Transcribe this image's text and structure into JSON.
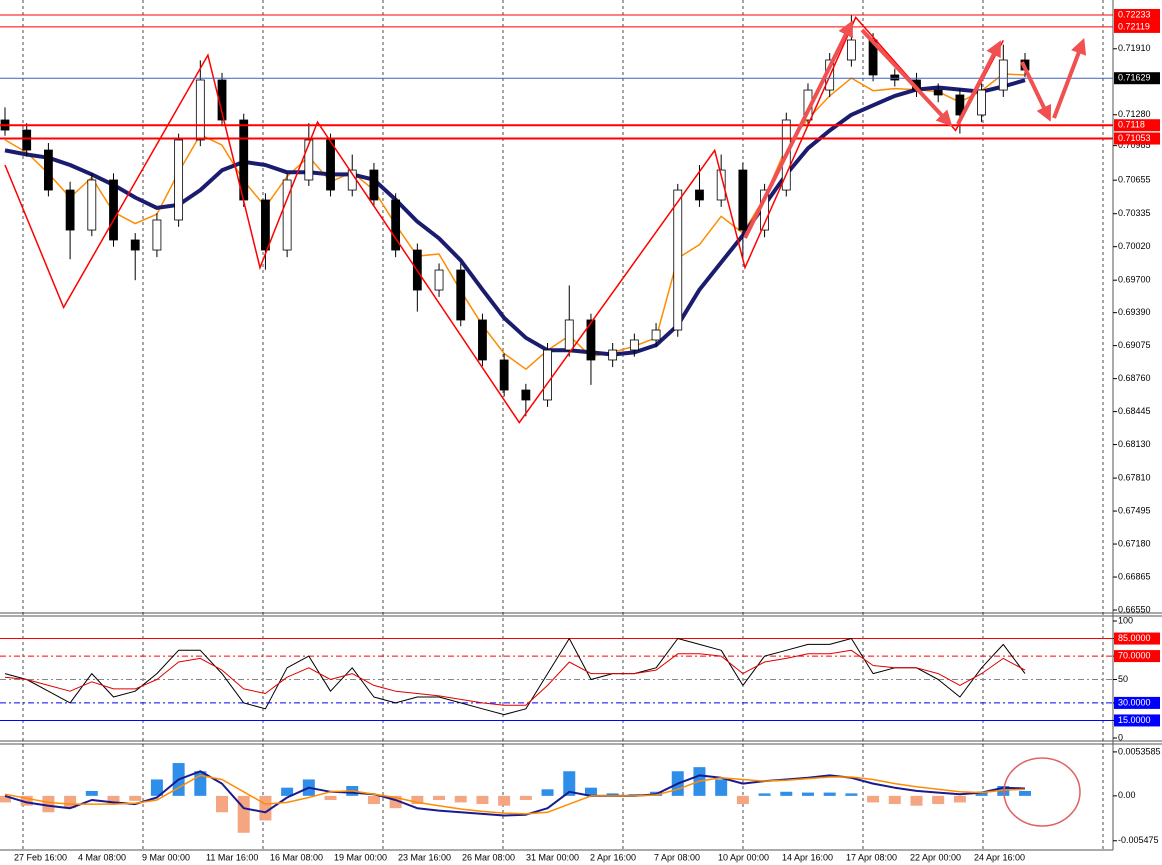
{
  "chart_data": [
    {
      "type": "candlestick",
      "ylim": [
        0.66531,
        0.72376
      ],
      "yticks": [
        {
          "value": 0.6655,
          "label": "0.66550"
        },
        0.66865,
        {
          "value": 0.6718,
          "label": "0.67180"
        },
        0.67495,
        {
          "value": 0.6781,
          "label": "0.67810"
        },
        {
          "value": 0.6813,
          "label": "0.68130"
        },
        0.68445,
        {
          "value": 0.6876,
          "label": "0.68760"
        },
        0.69075,
        {
          "value": 0.6939,
          "label": "0.69390"
        },
        {
          "value": 0.697,
          "label": "0.69700"
        },
        {
          "value": 0.7002,
          "label": "0.70020"
        },
        0.70335,
        0.70655,
        0.70985,
        {
          "value": 0.7128,
          "label": "0.71280"
        },
        {
          "value": 0.7191,
          "label": "0.71910"
        }
      ],
      "xticklabels": [
        "27 Feb 16:00",
        "4 Mar 08:00",
        "9 Mar 00:00",
        "11 Mar 16:00",
        "16 Mar 08:00",
        "19 Mar 00:00",
        "23 Mar 16:00",
        "26 Mar 08:00",
        "31 Mar 00:00",
        "2 Apr 16:00",
        "7 Apr 08:00",
        "10 Apr 00:00",
        "14 Apr 16:00",
        "17 Apr 08:00",
        "22 Apr 00:00",
        "24 Apr 16:00"
      ],
      "up_color": "#ffffff",
      "down_color": "#000000",
      "open": [
        0.7123,
        0.71134,
        0.70943,
        0.70561,
        0.70179,
        0.70657,
        0.70084,
        0.69988,
        0.70275,
        0.71039,
        0.71612,
        0.7123,
        0.70466,
        0.69988,
        0.70657,
        0.71039,
        0.70561,
        0.70752,
        0.70466,
        0.69988,
        0.69606,
        0.69797,
        0.6932,
        0.68938,
        0.68651,
        0.68556,
        0.69033,
        0.6932,
        0.68938,
        0.69033,
        0.69129,
        0.69224,
        0.70561,
        0.70466,
        0.70752,
        0.70179,
        0.70561,
        0.7123,
        0.71516,
        0.71803,
        0.71994,
        0.7166,
        0.71612,
        0.71516,
        0.71469,
        0.71278,
        0.71516,
        0.71803
      ],
      "high": [
        0.7135,
        0.712,
        0.7101,
        0.7064,
        0.7072,
        0.7072,
        0.7015,
        0.7034,
        0.711,
        0.718,
        0.7168,
        0.7129,
        0.7053,
        0.7072,
        0.712,
        0.711,
        0.709,
        0.7082,
        0.7053,
        0.7005,
        0.6986,
        0.6986,
        0.6938,
        0.69,
        0.6871,
        0.691,
        0.6965,
        0.6938,
        0.691,
        0.6919,
        0.6929,
        0.7062,
        0.708,
        0.709,
        0.7082,
        0.7062,
        0.713,
        0.7158,
        0.7187,
        0.72233,
        0.7206,
        0.7172,
        0.7168,
        0.7158,
        0.7153,
        0.7158,
        0.7195,
        0.7187
      ],
      "low": [
        0.7108,
        0.7088,
        0.705,
        0.699,
        0.7012,
        0.7002,
        0.697,
        0.6992,
        0.7021,
        0.7098,
        0.7117,
        0.704,
        0.698,
        0.6992,
        0.706,
        0.705,
        0.705,
        0.704,
        0.6992,
        0.694,
        0.6954,
        0.6926,
        0.6888,
        0.6859,
        0.684,
        0.6849,
        0.6897,
        0.687,
        0.6887,
        0.6897,
        0.6906,
        0.6916,
        0.704,
        0.704,
        0.699,
        0.7011,
        0.705,
        0.7117,
        0.7145,
        0.7174,
        0.716,
        0.7155,
        0.7145,
        0.714,
        0.711,
        0.7121,
        0.7145,
        0.7164
      ],
      "close": [
        0.71134,
        0.70943,
        0.70561,
        0.70179,
        0.70657,
        0.70084,
        0.69988,
        0.70275,
        0.71039,
        0.71612,
        0.7123,
        0.70466,
        0.69988,
        0.70657,
        0.71039,
        0.70561,
        0.70752,
        0.70466,
        0.69988,
        0.69606,
        0.69797,
        0.6932,
        0.68938,
        0.68651,
        0.68556,
        0.69033,
        0.6932,
        0.68938,
        0.69033,
        0.69129,
        0.69224,
        0.70561,
        0.70466,
        0.70752,
        0.70179,
        0.70561,
        0.7123,
        0.71516,
        0.71803,
        0.71994,
        0.7166,
        0.71612,
        0.71516,
        0.71469,
        0.71278,
        0.71516,
        0.71803,
        0.71707
      ],
      "series": [
        {
          "color": "#ff8c00",
          "width": 1.5,
          "values": [
            0.7104,
            0.7092,
            0.7072,
            0.7049,
            0.7068,
            0.7035,
            0.7024,
            0.7033,
            0.7073,
            0.7109,
            0.7099,
            0.7065,
            0.704,
            0.7069,
            0.7088,
            0.7064,
            0.7073,
            0.7056,
            0.7023,
            0.6993,
            0.6995,
            0.696,
            0.6927,
            0.69,
            0.6885,
            0.6903,
            0.6917,
            0.6897,
            0.6901,
            0.6907,
            0.6915,
            0.6991,
            0.7004,
            0.7031,
            0.7015,
            0.7049,
            0.7097,
            0.7124,
            0.7146,
            0.7163,
            0.7151,
            0.7153,
            0.7152,
            0.715,
            0.714,
            0.7151,
            0.7167,
            0.7166
          ]
        },
        {
          "color": "#1c1c6e",
          "width": 4,
          "values": [
            0.7094,
            0.709,
            0.7087,
            0.708,
            0.7071,
            0.7061,
            0.7049,
            0.7039,
            0.7042,
            0.7056,
            0.7075,
            0.7083,
            0.708,
            0.7073,
            0.7073,
            0.7071,
            0.7071,
            0.7066,
            0.7047,
            0.7026,
            0.701,
            0.6989,
            0.6961,
            0.6934,
            0.6915,
            0.6903,
            0.6903,
            0.6901,
            0.6899,
            0.6901,
            0.6908,
            0.6927,
            0.6961,
            0.6987,
            0.7013,
            0.7042,
            0.7071,
            0.7096,
            0.7113,
            0.7128,
            0.7137,
            0.7146,
            0.7152,
            0.7154,
            0.7152,
            0.715,
            0.7155,
            0.7161
          ]
        }
      ],
      "zigzag": {
        "color": "#ff0000",
        "x": [
          0,
          2.7,
          9.35,
          11.75,
          14.4,
          23.7,
          32.7,
          34.1,
          39.2,
          43.8,
          46.0
        ],
        "values": [
          0.708,
          0.6944,
          0.7185,
          0.6982,
          0.7121,
          0.6834,
          0.7094,
          0.6982,
          0.7221,
          0.7113,
          0.7199
        ]
      },
      "levels": [
        {
          "value": 0.72233,
          "color": "#ff0000",
          "width": 1,
          "label_color": "#ff0000"
        },
        {
          "value": 0.72119,
          "color": "#ff0000",
          "width": 1,
          "label_color": "#ff0000"
        },
        {
          "value": 0.71629,
          "color": "#4060c0",
          "width": 1,
          "label_color": "#000000"
        },
        {
          "value": 0.7118,
          "color": "#ff0000",
          "width": 2,
          "label_color": "#ff0000"
        },
        {
          "value": 0.71053,
          "color": "#ff0000",
          "width": 2,
          "label_color": "#ff0000"
        }
      ]
    },
    {
      "type": "line",
      "ylim": [
        0,
        100
      ],
      "yticks": [
        100,
        {
          "value": 85,
          "label": "85.0000",
          "color": "#ff0000",
          "dash": false
        },
        {
          "value": 70,
          "label": "70.0000",
          "color": "#ff0000",
          "dash": true
        },
        {
          "value": 50,
          "color": "#888888",
          "dash": true
        },
        {
          "value": 30,
          "label": "30.0000",
          "color": "#0000ff",
          "dash": true
        },
        {
          "value": 15,
          "label": "15.0000",
          "color": "#0000ff",
          "dash": false
        },
        0
      ],
      "series": [
        {
          "color": "#000000",
          "width": 1,
          "values": [
            55,
            50,
            40,
            30,
            55,
            35,
            40,
            55,
            75,
            75,
            55,
            30,
            25,
            60,
            70,
            40,
            60,
            35,
            30,
            35,
            35,
            30,
            25,
            20,
            25,
            55,
            85,
            50,
            55,
            55,
            60,
            85,
            80,
            75,
            45,
            70,
            75,
            80,
            80,
            85,
            55,
            60,
            60,
            50,
            35,
            60,
            80,
            55
          ]
        },
        {
          "color": "#e00000",
          "width": 1,
          "values": [
            52,
            50,
            45,
            40,
            48,
            42,
            42,
            50,
            65,
            68,
            58,
            42,
            38,
            52,
            60,
            50,
            55,
            45,
            40,
            38,
            36,
            33,
            30,
            28,
            28,
            45,
            65,
            55,
            55,
            55,
            58,
            72,
            72,
            70,
            55,
            65,
            68,
            72,
            72,
            75,
            62,
            60,
            60,
            55,
            45,
            55,
            68,
            58
          ]
        }
      ]
    },
    {
      "type": "bar",
      "ylim": [
        -0.0066,
        0.0062
      ],
      "yticks": [
        0.0053585,
        {
          "value": 0,
          "label": "0.00"
        },
        -0.005475
      ],
      "color": "#2f8fe8",
      "negative_color": "#f4a582",
      "values": [
        -0.0008,
        -0.0012,
        -0.002,
        -0.0015,
        0.0006,
        -0.001,
        -0.0006,
        0.002,
        0.004,
        0.003,
        -0.002,
        -0.0045,
        -0.003,
        0.001,
        0.002,
        -0.0005,
        0.0012,
        -0.001,
        -0.0015,
        -0.001,
        -0.0005,
        -0.0008,
        -0.001,
        -0.0012,
        -0.0005,
        0.0008,
        0.003,
        0.001,
        0.0003,
        0.0002,
        0.0005,
        0.003,
        0.0035,
        0.002,
        -0.001,
        0.0003,
        0.0005,
        0.0004,
        0.0004,
        0.0003,
        -0.0008,
        -0.001,
        -0.0012,
        -0.001,
        -0.0008,
        0.0005,
        0.0012,
        0.0006
      ],
      "series": [
        {
          "color": "#1a1a90",
          "width": 2,
          "values": [
            0,
            -0.0008,
            -0.0012,
            -0.0015,
            -0.0005,
            -0.0008,
            -0.001,
            -0.0002,
            0.002,
            0.003,
            0.0015,
            -0.0015,
            -0.002,
            -0.0002,
            0.001,
            0.0005,
            0.0004,
            0.0002,
            -0.0005,
            -0.0015,
            -0.0018,
            -0.002,
            -0.0022,
            -0.0024,
            -0.0023,
            -0.0015,
            0.0005,
            0,
            0,
            0,
            0.0002,
            0.0015,
            0.0025,
            0.0022,
            0.0015,
            0.0018,
            0.002,
            0.0022,
            0.0025,
            0.0022,
            0.0015,
            0.001,
            0.0006,
            0.0004,
            0.0002,
            0.0004,
            0.001,
            0.0009
          ]
        },
        {
          "color": "#ff8c00",
          "width": 1.5,
          "values": [
            0.0002,
            -0.0003,
            -0.0008,
            -0.001,
            -0.001,
            -0.001,
            -0.0009,
            -0.0005,
            0.001,
            0.0025,
            0.002,
            0.0005,
            -0.001,
            -0.0008,
            -0.0002,
            0.0005,
            0.0006,
            0.0002,
            -0.0002,
            -0.0008,
            -0.0012,
            -0.0016,
            -0.0019,
            -0.0021,
            -0.0022,
            -0.002,
            -0.001,
            0,
            0,
            0,
            0.0001,
            0.0008,
            0.0018,
            0.0022,
            0.002,
            0.0018,
            0.0019,
            0.0021,
            0.0023,
            0.0023,
            0.002,
            0.0015,
            0.0011,
            0.0008,
            0.0005,
            0.0004,
            0.0007,
            0.0008
          ]
        }
      ]
    }
  ]
}
